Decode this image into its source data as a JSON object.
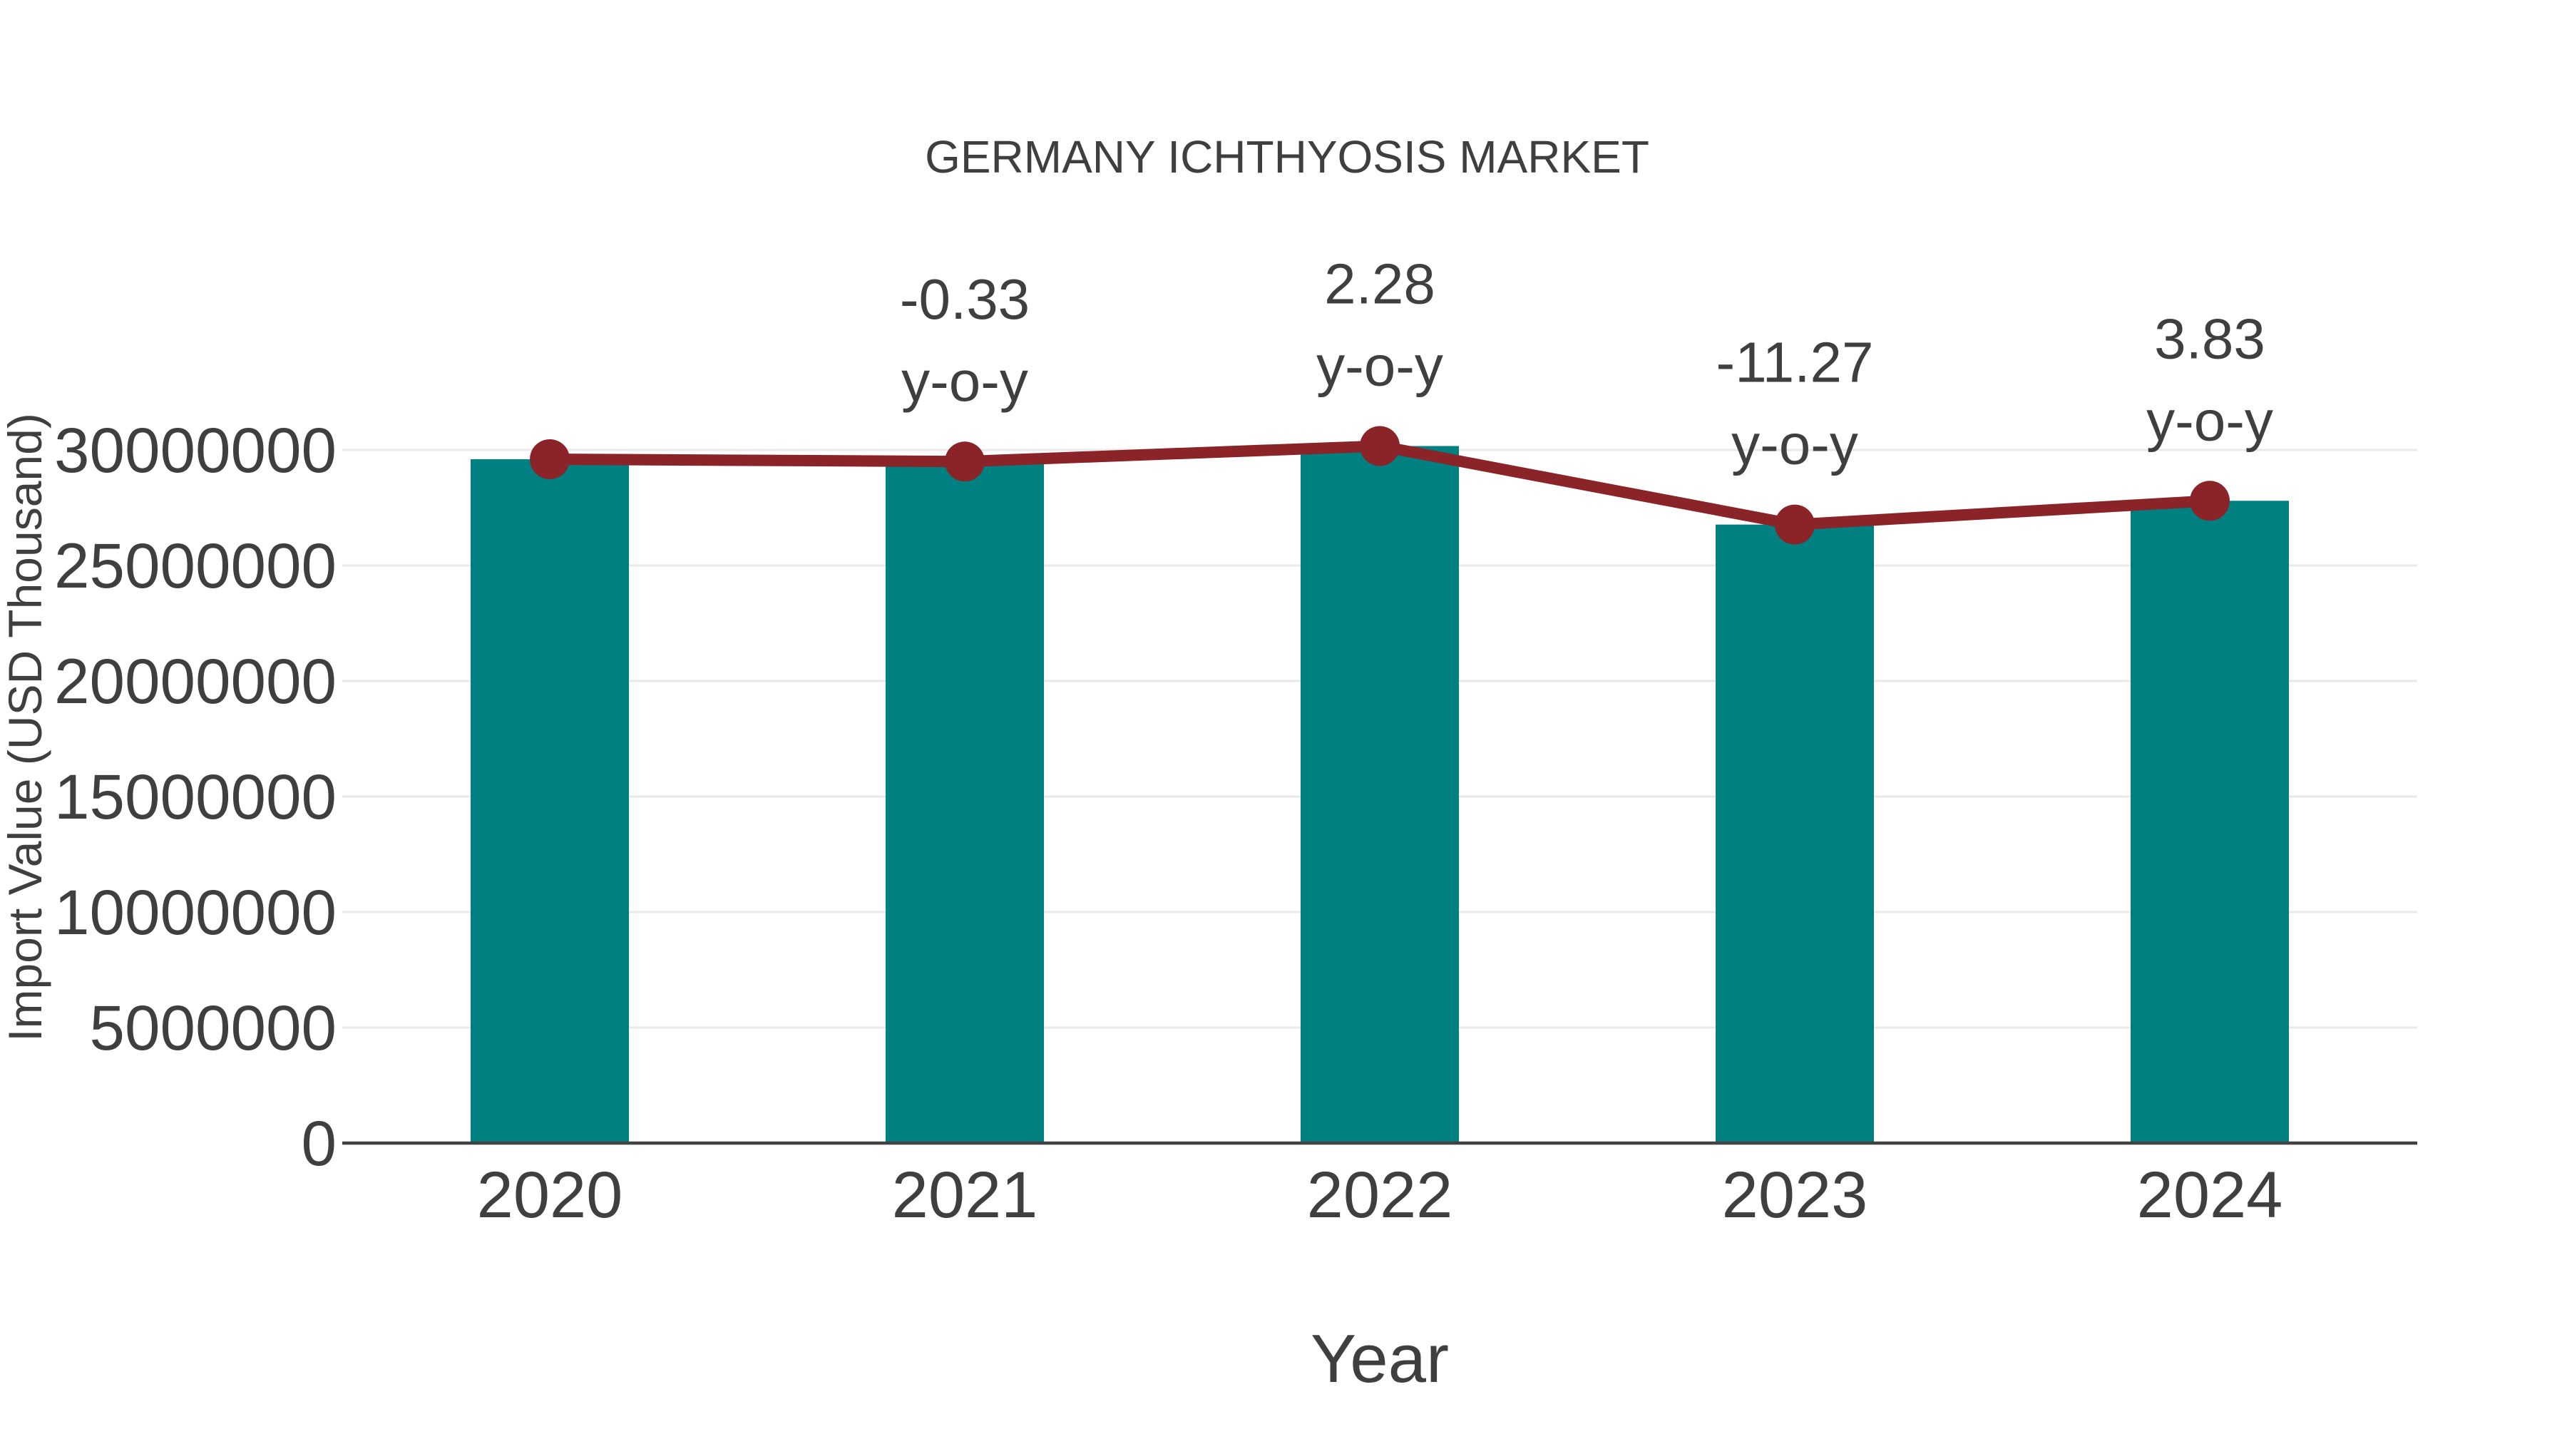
{
  "page": {
    "background": "#ffffff"
  },
  "chart_data": {
    "type": "bar",
    "title": "GERMANY ICHTHYOSIS MARKET",
    "xlabel": "Year",
    "ylabel": "Import Value (USD Thousand)",
    "categories": [
      "2020",
      "2021",
      "2022",
      "2023",
      "2024"
    ],
    "series": [
      {
        "name": "import-value-bars",
        "type": "bar",
        "values": [
          29600000,
          29500000,
          30170000,
          26770000,
          27800000
        ]
      },
      {
        "name": "import-value-trend-line",
        "type": "line",
        "values": [
          29600000,
          29500000,
          30170000,
          26770000,
          27800000
        ]
      }
    ],
    "annotations": [
      {
        "category": "2021",
        "value": "-0.33",
        "label": "y-o-y"
      },
      {
        "category": "2022",
        "value": "2.28",
        "label": "y-o-y"
      },
      {
        "category": "2023",
        "value": "-11.27",
        "label": "y-o-y"
      },
      {
        "category": "2024",
        "value": "3.83",
        "label": "y-o-y"
      }
    ],
    "y_ticks": [
      {
        "value": 0,
        "label": "0"
      },
      {
        "value": 5000000,
        "label": "5000000"
      },
      {
        "value": 10000000,
        "label": "10000000"
      },
      {
        "value": 15000000,
        "label": "15000000"
      },
      {
        "value": 20000000,
        "label": "20000000"
      },
      {
        "value": 25000000,
        "label": "25000000"
      },
      {
        "value": 30000000,
        "label": "30000000"
      }
    ],
    "ylim": [
      0,
      30000000
    ],
    "grid": true,
    "legend": "none",
    "colors": {
      "bar": "#008080",
      "line": "#8b2428",
      "marker": "#8b2428",
      "text": "#3f3f3f",
      "grid": "#e9e9e9",
      "axis": "#424242"
    }
  }
}
